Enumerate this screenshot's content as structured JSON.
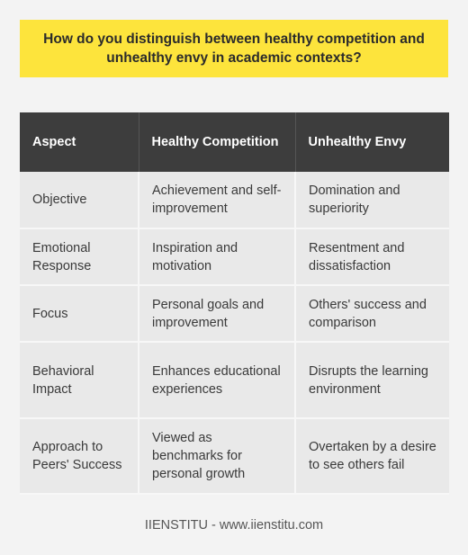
{
  "question": "How do you distinguish between healthy competition and unhealthy envy in academic contexts?",
  "table": {
    "headers": [
      "Aspect",
      "Healthy Competition",
      "Unhealthy Envy"
    ],
    "rows": [
      [
        "Objective",
        "Achievement and self-improvement",
        "Domination and superiority"
      ],
      [
        "Emotional Response",
        "Inspiration and motivation",
        "Resentment and dissatisfaction"
      ],
      [
        "Focus",
        "Personal goals and improvement",
        "Others' success and comparison"
      ],
      [
        "Behavioral Impact",
        "Enhances educational experiences",
        "Disrupts the learning environment"
      ],
      [
        "Approach to Peers' Success",
        "Viewed as benchmarks for personal growth",
        "Overtaken by a desire to see others fail"
      ]
    ]
  },
  "footer": "IIENSTITU - www.iienstitu.com",
  "colors": {
    "question_bg": "#fde43c",
    "header_bg": "#3d3d3d",
    "row_bg": "#e9e9e9",
    "page_bg": "#f3f3f3"
  }
}
